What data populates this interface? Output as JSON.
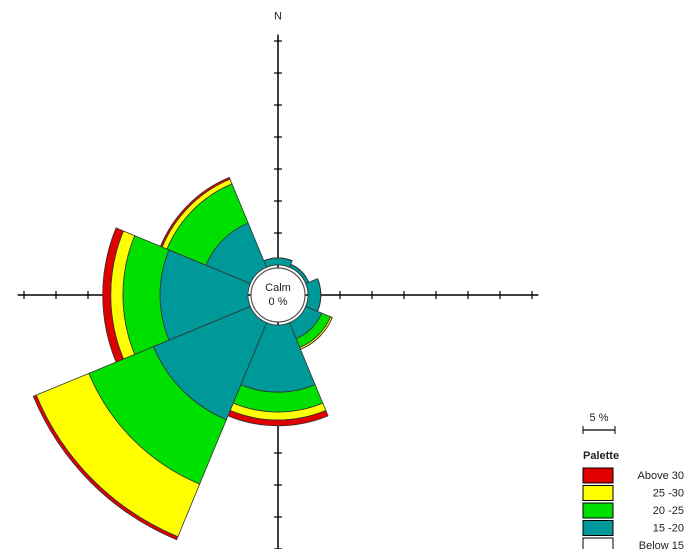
{
  "chart_data": {
    "type": "windrose",
    "categories": [
      "N",
      null,
      null,
      null,
      null,
      null,
      null,
      null
    ],
    "series": [
      {
        "name": "Above 30",
        "color": "#e00000",
        "values": [
          0,
          0,
          0,
          0,
          0.9,
          0.5,
          1.25,
          0.3
        ]
      },
      {
        "name": "25 -30",
        "color": "#ffff00",
        "values": [
          0,
          0,
          0,
          0.3,
          1.25,
          8.9,
          1.9,
          0.8
        ]
      },
      {
        "name": "20 -25",
        "color": "#00e000",
        "values": [
          0,
          0,
          0,
          1.5,
          3.1,
          10.9,
          5.8,
          6.6
        ]
      },
      {
        "name": "15 -20",
        "color": "#009999",
        "values": [
          1.1,
          0.5,
          2,
          2.7,
          10.5,
          16.4,
          13.75,
          7.5
        ]
      },
      {
        "name": "Below 15",
        "color": "#ffffff",
        "values": [
          0,
          0,
          0,
          0,
          0,
          0,
          0,
          0
        ]
      }
    ],
    "rlim": [
      0,
      36
    ],
    "rticks": [
      5,
      10,
      15,
      20,
      25,
      30,
      35
    ],
    "calm": {
      "label": "Calm",
      "value": 0,
      "value_label": "0 %"
    },
    "scale_bar": {
      "value": 5,
      "label": "5 %"
    },
    "legend_title": "Palette"
  }
}
